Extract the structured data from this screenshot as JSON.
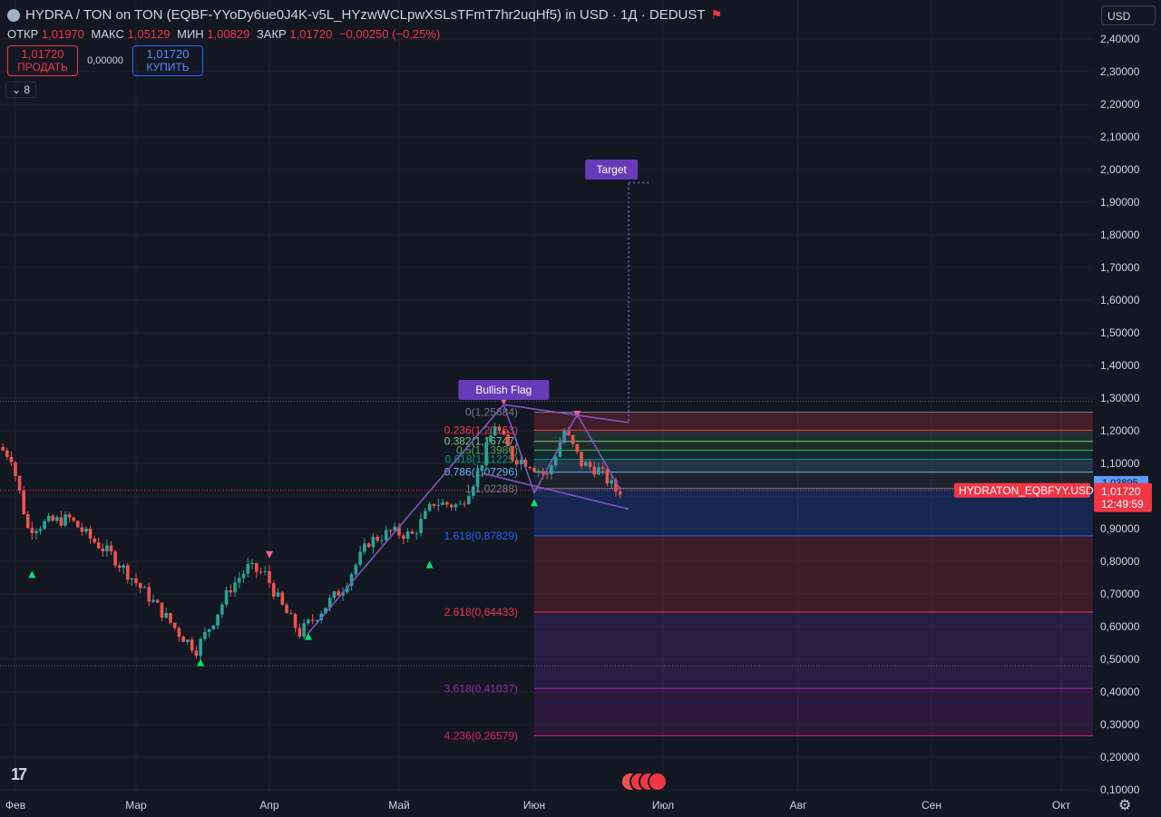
{
  "header": {
    "title": "HYDRA / TON on TON (EQBF-YYoDy6ue0J4K-v5L_HYzwWCLpwXSLsTFmT7hr2uqHf5) in USD · 1Д · DEDUST",
    "ohlc": [
      {
        "key": "ОТКР",
        "value": "1,01970"
      },
      {
        "key": "МАКС",
        "value": "1,05129"
      },
      {
        "key": "МИН",
        "value": "1,00829"
      },
      {
        "key": "ЗАКР",
        "value": "1,01720"
      },
      {
        "key": "",
        "value": "−0,00250 (−0,25%)"
      }
    ]
  },
  "trade": {
    "sell_price": "1,01720",
    "sell_label": "ПРОДАТЬ",
    "spread": "0,00000",
    "buy_price": "1,01720",
    "buy_label": "КУПИТЬ"
  },
  "indicators_toggle": "8",
  "currency_select": "USD",
  "price_label": {
    "symbol": "HYDRATON_EQBFYY.USD",
    "price": "1,01720",
    "countdown": "12:49:59",
    "aux": "1,03895"
  },
  "colors": {
    "bg": "#131722",
    "up": "#26a69a",
    "down": "#ef5350",
    "pattern": "#7e57c2",
    "label": "#673ab7"
  },
  "chart_data": {
    "type": "candlestick",
    "y_axis": {
      "min": 0.1,
      "max": 2.4,
      "step": 0.1,
      "decimals": 5
    },
    "y_ticks": [
      "2,40000",
      "2,30000",
      "2,20000",
      "2,10000",
      "2,00000",
      "1,90000",
      "1,80000",
      "1,70000",
      "1,60000",
      "1,50000",
      "1,40000",
      "1,30000",
      "1,20000",
      "1,10000",
      "0,90000",
      "0,80000",
      "0,70000",
      "0,60000",
      "0,50000",
      "0,40000",
      "0,30000",
      "0,20000",
      "0,10000"
    ],
    "x_axis": {
      "labels": [
        {
          "label": "Фев",
          "date": "2024-02-01"
        },
        {
          "label": "Мар",
          "date": "2024-03-01"
        },
        {
          "label": "Апр",
          "date": "2024-04-01"
        },
        {
          "label": "Май",
          "date": "2024-05-01"
        },
        {
          "label": "Июн",
          "date": "2024-06-01"
        },
        {
          "label": "Июл",
          "date": "2024-07-01"
        },
        {
          "label": "Авг",
          "date": "2024-08-01"
        },
        {
          "label": "Сен",
          "date": "2024-09-01"
        },
        {
          "label": "Окт",
          "date": "2024-10-01"
        }
      ]
    },
    "price_path": [
      [
        "2024-01-29",
        1.15
      ],
      [
        "2024-02-01",
        1.12
      ],
      [
        "2024-02-05",
        0.9
      ],
      [
        "2024-02-10",
        0.92
      ],
      [
        "2024-02-15",
        0.93
      ],
      [
        "2024-02-20",
        0.87
      ],
      [
        "2024-02-25",
        0.82
      ],
      [
        "2024-03-01",
        0.75
      ],
      [
        "2024-03-07",
        0.66
      ],
      [
        "2024-03-12",
        0.58
      ],
      [
        "2024-03-16",
        0.53
      ],
      [
        "2024-03-20",
        0.62
      ],
      [
        "2024-03-24",
        0.72
      ],
      [
        "2024-03-28",
        0.78
      ],
      [
        "2024-04-01",
        0.76
      ],
      [
        "2024-04-05",
        0.66
      ],
      [
        "2024-04-09",
        0.58
      ],
      [
        "2024-04-14",
        0.65
      ],
      [
        "2024-04-19",
        0.72
      ],
      [
        "2024-04-25",
        0.86
      ],
      [
        "2024-04-30",
        0.89
      ],
      [
        "2024-05-05",
        0.88
      ],
      [
        "2024-05-10",
        0.98
      ],
      [
        "2024-05-16",
        0.97
      ],
      [
        "2024-05-20",
        1.07
      ],
      [
        "2024-05-24",
        1.22
      ],
      [
        "2024-05-28",
        1.12
      ],
      [
        "2024-06-01",
        1.1
      ],
      [
        "2024-06-05",
        1.06
      ],
      [
        "2024-06-09",
        1.2
      ],
      [
        "2024-06-13",
        1.1
      ],
      [
        "2024-06-17",
        1.08
      ],
      [
        "2024-06-21",
        1.0172
      ]
    ],
    "markers": [
      {
        "date": "2024-02-05",
        "price": 0.76,
        "dir": "up"
      },
      {
        "date": "2024-03-16",
        "price": 0.49,
        "dir": "up"
      },
      {
        "date": "2024-04-01",
        "price": 0.82,
        "dir": "down"
      },
      {
        "date": "2024-04-10",
        "price": 0.57,
        "dir": "up"
      },
      {
        "date": "2024-05-08",
        "price": 0.79,
        "dir": "up"
      },
      {
        "date": "2024-05-25",
        "price": 1.29,
        "dir": "down"
      },
      {
        "date": "2024-06-01",
        "price": 0.98,
        "dir": "up"
      },
      {
        "date": "2024-06-11",
        "price": 1.25,
        "dir": "down"
      }
    ],
    "fib_levels": [
      {
        "label": "0(1,25684)",
        "value": 1.25684,
        "color": "#787b86"
      },
      {
        "label": "0.236(1,20163)",
        "value": 1.20163,
        "color": "#f23645"
      },
      {
        "label": "0.382(1,16747)",
        "value": 1.16747,
        "color": "#81c784"
      },
      {
        "label": "0.5(1,13986)",
        "value": 1.13986,
        "color": "#4caf50"
      },
      {
        "label": "0.618(1,11225)",
        "value": 1.11225,
        "color": "#089981"
      },
      {
        "label": "0.786(1,07296)",
        "value": 1.07296,
        "color": "#64b5f6"
      },
      {
        "label": "1(1,02288)",
        "value": 1.02288,
        "color": "#787b86"
      },
      {
        "label": "1.618(0,87829)",
        "value": 0.87829,
        "color": "#2962ff"
      },
      {
        "label": "2.618(0,64433)",
        "value": 0.64433,
        "color": "#f23645"
      },
      {
        "label": "3.618(0,41037)",
        "value": 0.41037,
        "color": "#9c27b0"
      },
      {
        "label": "4.236(0,26579)",
        "value": 0.26579,
        "color": "#e91e63"
      }
    ],
    "annotations": {
      "pattern_label": "Bullish Flag",
      "target_label": "Target",
      "target_price": 1.96
    }
  }
}
